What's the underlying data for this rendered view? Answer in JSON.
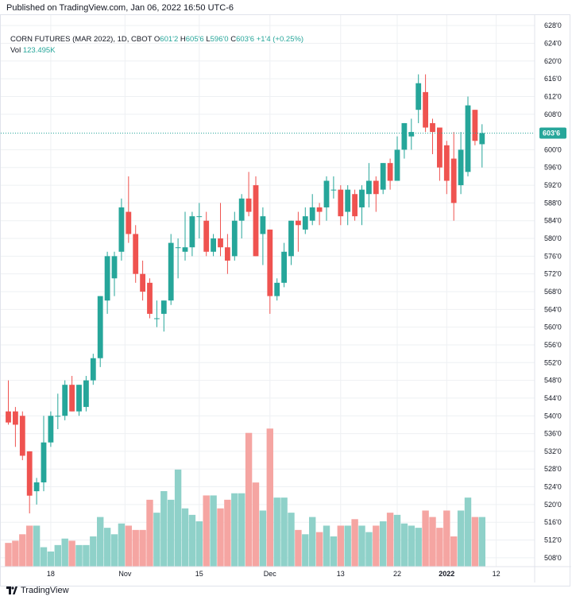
{
  "header": {
    "published": "Published on TradingView.com, Jan 06, 2022 16:50 UTC-6"
  },
  "legend": {
    "symbol": "CORN FUTURES (MAR 2022), 1D, CBOT",
    "o_label": "O",
    "o_value": "601'2",
    "h_label": "H",
    "h_value": "605'6",
    "l_label": "L",
    "l_value": "596'0",
    "c_label": "C",
    "c_value": "603'6",
    "change": "+1'4 (+0.25%)",
    "vol_label": "Vol",
    "vol_value": "123.495K"
  },
  "footer": {
    "brand": "TradingView"
  },
  "colors": {
    "up": "#26a69a",
    "down": "#ef5350",
    "vol_up": "#8fd1c9",
    "vol_down": "#f5a5a2",
    "grid": "#eef0f3",
    "last_line": "#26a69a"
  },
  "chart_data": {
    "type": "candlestick",
    "title": "CORN FUTURES (MAR 2022), 1D, CBOT",
    "y_range": [
      506,
      630
    ],
    "last_price": 603.75,
    "last_price_label": "603'6",
    "y_ticks": [
      {
        "v": 508,
        "label": "508'0"
      },
      {
        "v": 512,
        "label": "512'0"
      },
      {
        "v": 516,
        "label": "516'0"
      },
      {
        "v": 520,
        "label": "520'0"
      },
      {
        "v": 524,
        "label": "524'0"
      },
      {
        "v": 528,
        "label": "528'0"
      },
      {
        "v": 532,
        "label": "532'0"
      },
      {
        "v": 536,
        "label": "536'0"
      },
      {
        "v": 540,
        "label": "540'0"
      },
      {
        "v": 544,
        "label": "544'0"
      },
      {
        "v": 548,
        "label": "548'0"
      },
      {
        "v": 552,
        "label": "552'0"
      },
      {
        "v": 556,
        "label": "556'0"
      },
      {
        "v": 560,
        "label": "560'0"
      },
      {
        "v": 564,
        "label": "564'0"
      },
      {
        "v": 568,
        "label": "568'0"
      },
      {
        "v": 572,
        "label": "572'0"
      },
      {
        "v": 576,
        "label": "576'0"
      },
      {
        "v": 580,
        "label": "580'0"
      },
      {
        "v": 584,
        "label": "584'0"
      },
      {
        "v": 588,
        "label": "588'0"
      },
      {
        "v": 592,
        "label": "592'0"
      },
      {
        "v": 596,
        "label": "596'0"
      },
      {
        "v": 600,
        "label": "600'0"
      },
      {
        "v": 608,
        "label": "608'0"
      },
      {
        "v": 612,
        "label": "612'0"
      },
      {
        "v": 616,
        "label": "616'0"
      },
      {
        "v": 620,
        "label": "620'0"
      },
      {
        "v": 624,
        "label": "624'0"
      },
      {
        "v": 628,
        "label": "628'0"
      }
    ],
    "x_ticks": [
      {
        "i": 6,
        "label": "18",
        "bold": false
      },
      {
        "i": 16.5,
        "label": "Nov",
        "bold": false
      },
      {
        "i": 27,
        "label": "15",
        "bold": false
      },
      {
        "i": 37,
        "label": "Dec",
        "bold": false
      },
      {
        "i": 47,
        "label": "13",
        "bold": false
      },
      {
        "i": 55,
        "label": "22",
        "bold": false
      },
      {
        "i": 62,
        "label": "2022",
        "bold": true
      },
      {
        "i": 69,
        "label": "12",
        "bold": false
      }
    ],
    "candles": [
      {
        "o": 541,
        "h": 548,
        "l": 538,
        "c": 538.5,
        "v": 11
      },
      {
        "o": 541,
        "h": 542,
        "l": 533,
        "c": 538,
        "v": 12
      },
      {
        "o": 540,
        "h": 541,
        "l": 530,
        "c": 531,
        "v": 15
      },
      {
        "o": 532,
        "h": 532,
        "l": 518,
        "c": 522,
        "v": 19
      },
      {
        "o": 523,
        "h": 526,
        "l": 520,
        "c": 525,
        "v": 19
      },
      {
        "o": 525,
        "h": 540,
        "l": 523,
        "c": 534,
        "v": 9
      },
      {
        "o": 534,
        "h": 541,
        "l": 533,
        "c": 540,
        "v": 7
      },
      {
        "o": 540,
        "h": 545,
        "l": 537,
        "c": 540,
        "v": 10
      },
      {
        "o": 540,
        "h": 548,
        "l": 539,
        "c": 547,
        "v": 13
      },
      {
        "o": 547,
        "h": 549,
        "l": 541,
        "c": 541,
        "v": 12
      },
      {
        "o": 541,
        "h": 547,
        "l": 540,
        "c": 547,
        "v": 10
      },
      {
        "o": 542,
        "h": 549,
        "l": 541,
        "c": 548,
        "v": 10
      },
      {
        "o": 548,
        "h": 554,
        "l": 547,
        "c": 553,
        "v": 14
      },
      {
        "o": 553,
        "h": 567,
        "l": 551,
        "c": 567,
        "v": 23
      },
      {
        "o": 566,
        "h": 577,
        "l": 563,
        "c": 576,
        "v": 18
      },
      {
        "o": 571,
        "h": 577,
        "l": 567,
        "c": 576,
        "v": 15
      },
      {
        "o": 577,
        "h": 589,
        "l": 575,
        "c": 587,
        "v": 20
      },
      {
        "o": 586,
        "h": 594,
        "l": 579,
        "c": 581,
        "v": 19
      },
      {
        "o": 581,
        "h": 583,
        "l": 570,
        "c": 572,
        "v": 17
      },
      {
        "o": 572,
        "h": 575,
        "l": 566,
        "c": 568,
        "v": 17
      },
      {
        "o": 570,
        "h": 571,
        "l": 562,
        "c": 563,
        "v": 31
      },
      {
        "o": 562,
        "h": 566,
        "l": 560,
        "c": 562,
        "v": 25
      },
      {
        "o": 563,
        "h": 566,
        "l": 559,
        "c": 566,
        "v": 35
      },
      {
        "o": 566,
        "h": 581,
        "l": 565,
        "c": 579,
        "v": 31
      },
      {
        "o": 578,
        "h": 580,
        "l": 571,
        "c": 578,
        "v": 45
      },
      {
        "o": 577,
        "h": 586,
        "l": 575,
        "c": 578,
        "v": 27
      },
      {
        "o": 578,
        "h": 586,
        "l": 576,
        "c": 585,
        "v": 24
      },
      {
        "o": 585,
        "h": 588,
        "l": 580,
        "c": 585,
        "v": 21
      },
      {
        "o": 584,
        "h": 586,
        "l": 576,
        "c": 577,
        "v": 33
      },
      {
        "o": 577,
        "h": 581,
        "l": 576,
        "c": 580,
        "v": 33
      },
      {
        "o": 580,
        "h": 588,
        "l": 576,
        "c": 578,
        "v": 27
      },
      {
        "o": 578,
        "h": 581,
        "l": 572,
        "c": 575,
        "v": 31
      },
      {
        "o": 576,
        "h": 586,
        "l": 575,
        "c": 584,
        "v": 34
      },
      {
        "o": 584,
        "h": 590,
        "l": 580,
        "c": 589,
        "v": 34
      },
      {
        "o": 589,
        "h": 595,
        "l": 585,
        "c": 586,
        "v": 62
      },
      {
        "o": 592,
        "h": 594,
        "l": 576,
        "c": 576,
        "v": 39
      },
      {
        "o": 581,
        "h": 587,
        "l": 574,
        "c": 585,
        "v": 26
      },
      {
        "o": 582,
        "h": 582,
        "l": 563,
        "c": 567,
        "v": 64
      },
      {
        "o": 567,
        "h": 571,
        "l": 566,
        "c": 570,
        "v": 32
      },
      {
        "o": 570,
        "h": 579,
        "l": 569,
        "c": 577,
        "v": 32
      },
      {
        "o": 576,
        "h": 584,
        "l": 574,
        "c": 584,
        "v": 25
      },
      {
        "o": 584,
        "h": 586,
        "l": 577,
        "c": 583,
        "v": 17
      },
      {
        "o": 582,
        "h": 587,
        "l": 581,
        "c": 585,
        "v": 15
      },
      {
        "o": 584,
        "h": 590,
        "l": 583,
        "c": 587,
        "v": 23
      },
      {
        "o": 587,
        "h": 588,
        "l": 583,
        "c": 586,
        "v": 16
      },
      {
        "o": 587,
        "h": 594,
        "l": 584,
        "c": 593,
        "v": 19
      },
      {
        "o": 591,
        "h": 594,
        "l": 589,
        "c": 591,
        "v": 14
      },
      {
        "o": 591,
        "h": 592,
        "l": 583,
        "c": 585,
        "v": 19
      },
      {
        "o": 586,
        "h": 592,
        "l": 583,
        "c": 591,
        "v": 19
      },
      {
        "o": 590,
        "h": 591,
        "l": 584,
        "c": 585,
        "v": 22
      },
      {
        "o": 587,
        "h": 592,
        "l": 583,
        "c": 591,
        "v": 19
      },
      {
        "o": 590,
        "h": 597,
        "l": 587,
        "c": 593,
        "v": 16
      },
      {
        "o": 593,
        "h": 594,
        "l": 586,
        "c": 590,
        "v": 19
      },
      {
        "o": 591,
        "h": 597,
        "l": 590,
        "c": 597,
        "v": 21
      },
      {
        "o": 597,
        "h": 598,
        "l": 591,
        "c": 593,
        "v": 25
      },
      {
        "o": 593,
        "h": 603,
        "l": 593,
        "c": 600,
        "v": 24
      },
      {
        "o": 600,
        "h": 606,
        "l": 598,
        "c": 606,
        "v": 20
      },
      {
        "o": 603,
        "h": 607,
        "l": 600,
        "c": 604,
        "v": 19
      },
      {
        "o": 609,
        "h": 617,
        "l": 606,
        "c": 615,
        "v": 18
      },
      {
        "o": 613,
        "h": 617,
        "l": 604,
        "c": 605,
        "v": 26
      },
      {
        "o": 606,
        "h": 607,
        "l": 599,
        "c": 604,
        "v": 23
      },
      {
        "o": 605,
        "h": 605,
        "l": 593,
        "c": 596,
        "v": 18
      },
      {
        "o": 601,
        "h": 602,
        "l": 590,
        "c": 593,
        "v": 26
      },
      {
        "o": 598,
        "h": 604,
        "l": 584,
        "c": 588,
        "v": 14
      },
      {
        "o": 592,
        "h": 604,
        "l": 590,
        "c": 600,
        "v": 26
      },
      {
        "o": 595,
        "h": 612,
        "l": 594,
        "c": 610,
        "v": 32
      },
      {
        "o": 609,
        "h": 609,
        "l": 601,
        "c": 602,
        "v": 23
      },
      {
        "o": 601.25,
        "h": 605.75,
        "l": 596,
        "c": 603.75,
        "v": 23
      }
    ]
  }
}
